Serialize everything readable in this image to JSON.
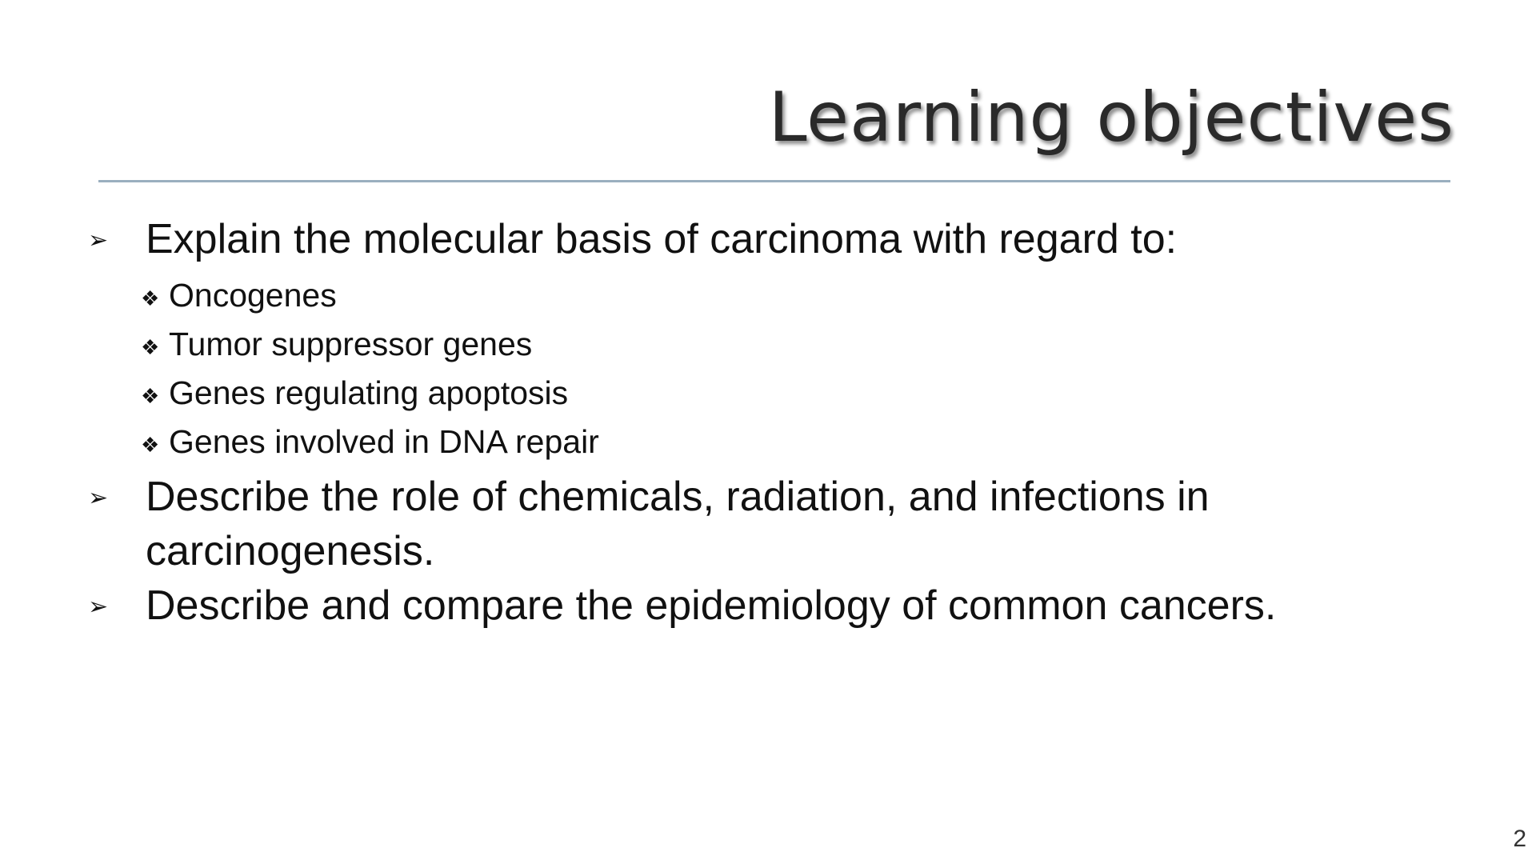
{
  "slide": {
    "title": "Learning objectives",
    "objectives": [
      {
        "text": "Explain the molecular basis of carcinoma with regard to:",
        "subitems": [
          "Oncogenes",
          "Tumor suppressor genes",
          "Genes regulating apoptosis",
          "Genes involved in DNA repair"
        ]
      },
      {
        "text": "Describe the role of chemicals, radiation, and infections in carcinogenesis."
      },
      {
        "text": "Describe and compare the epidemiology of common cancers."
      }
    ],
    "page_number": "2",
    "level1_marker": "➢",
    "level2_marker": "❖",
    "rule_color": "#9aafbf"
  }
}
